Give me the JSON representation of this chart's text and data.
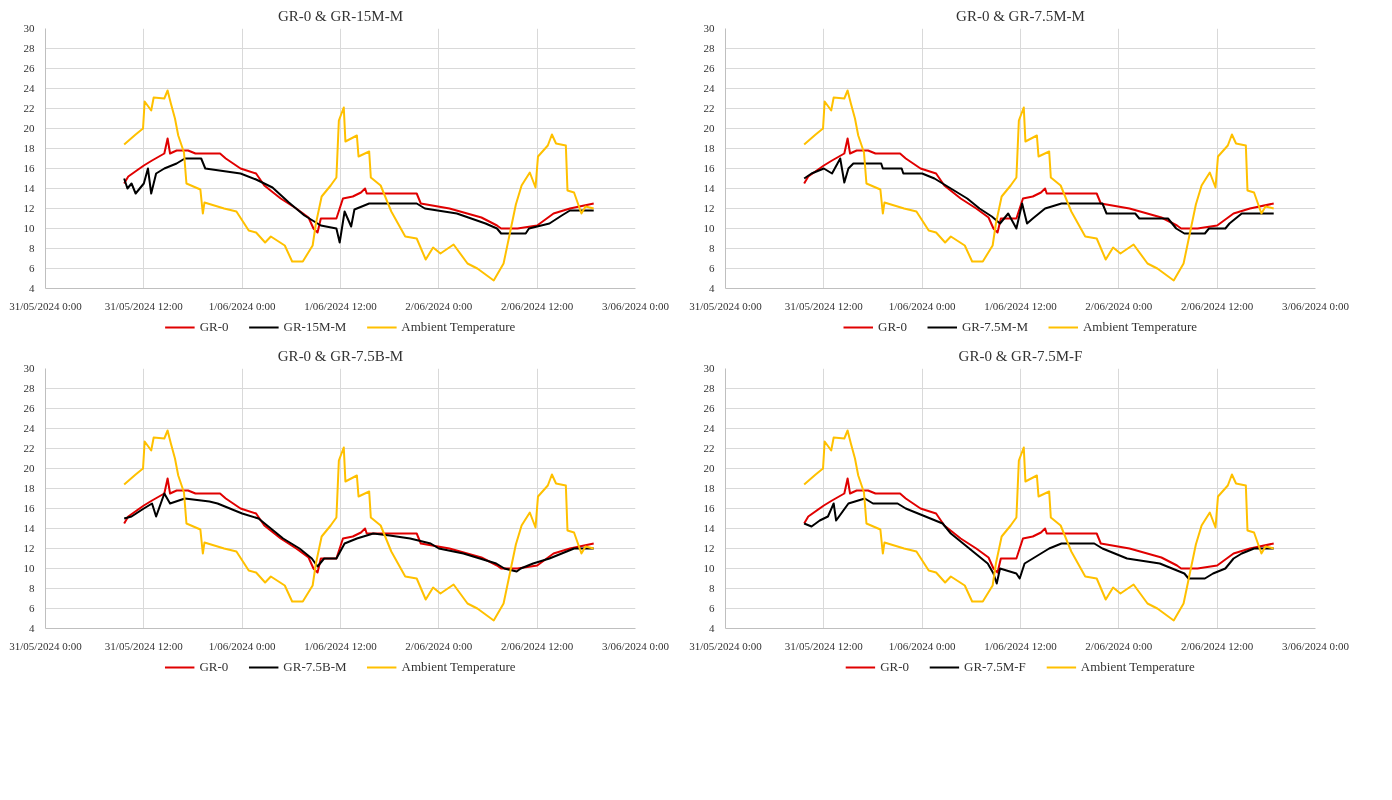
{
  "chart_data": [
    {
      "type": "line",
      "title": "GR-0 & GR-15M-M",
      "xlim": [
        "2024-05-31T00:00",
        "2024-06-03T00:00"
      ],
      "xticks": [
        {
          "value": "2024-05-31T00:00",
          "label": "31/05/2024 0:00"
        },
        {
          "value": "2024-05-31T12:00",
          "label": "31/05/2024 12:00"
        },
        {
          "value": "2024-06-01T00:00",
          "label": "1/06/2024 0:00"
        },
        {
          "value": "2024-06-01T12:00",
          "label": "1/06/2024 12:00"
        },
        {
          "value": "2024-06-02T00:00",
          "label": "2/06/2024 0:00"
        },
        {
          "value": "2024-06-02T12:00",
          "label": "2/06/2024 12:00"
        },
        {
          "value": "2024-06-03T00:00",
          "label": "3/06/2024 0:00"
        }
      ],
      "ylim": [
        4,
        30
      ],
      "yticks": [
        4,
        6,
        8,
        10,
        12,
        14,
        16,
        18,
        20,
        22,
        24,
        26,
        28,
        30
      ],
      "grid": true,
      "legend": "bottom",
      "series": [
        {
          "name": "GR-0",
          "color": "#e00000",
          "x": [
            "2024-05-31T09:36",
            "2024-05-31T10:06",
            "2024-05-31T12:00",
            "2024-05-31T13:00",
            "2024-05-31T14:30",
            "2024-05-31T14:54",
            "2024-05-31T15:12",
            "2024-05-31T16:00",
            "2024-05-31T17:24",
            "2024-05-31T18:18",
            "2024-05-31T21:18",
            "2024-05-31T22:00",
            "2024-05-31T23:48",
            "2024-06-01T01:42",
            "2024-06-01T02:42",
            "2024-06-01T04:42",
            "2024-06-01T06:36",
            "2024-06-01T08:06",
            "2024-06-01T08:42",
            "2024-06-01T09:12",
            "2024-06-01T09:36",
            "2024-06-01T11:30",
            "2024-06-01T12:18",
            "2024-06-01T13:30",
            "2024-06-01T14:30",
            "2024-06-01T15:00",
            "2024-06-01T15:12",
            "2024-06-01T21:18",
            "2024-06-01T21:48",
            "2024-06-02T01:18",
            "2024-06-02T05:12",
            "2024-06-02T07:06",
            "2024-06-02T07:36",
            "2024-06-02T09:36",
            "2024-06-02T12:00",
            "2024-06-02T14:00",
            "2024-06-02T16:00",
            "2024-06-02T18:54"
          ],
          "values": [
            14.5,
            15.2,
            16.3,
            16.8,
            17.5,
            19.0,
            17.5,
            17.8,
            17.8,
            17.5,
            17.5,
            17.0,
            16.0,
            15.5,
            14.3,
            13.0,
            12.0,
            11.1,
            10.0,
            9.6,
            11.0,
            11.0,
            13.0,
            13.2,
            13.6,
            14.0,
            13.5,
            13.5,
            12.5,
            12.0,
            11.1,
            10.3,
            10.0,
            10.0,
            10.3,
            11.5,
            12.0,
            12.5
          ]
        },
        {
          "name": "GR-15M-M",
          "color": "#000000",
          "x": [
            "2024-05-31T09:36",
            "2024-05-31T10:00",
            "2024-05-31T10:30",
            "2024-05-31T11:00",
            "2024-05-31T12:00",
            "2024-05-31T12:30",
            "2024-05-31T12:54",
            "2024-05-31T13:30",
            "2024-05-31T14:30",
            "2024-05-31T16:00",
            "2024-05-31T17:00",
            "2024-05-31T19:00",
            "2024-05-31T19:30",
            "2024-05-31T23:48",
            "2024-06-01T01:42",
            "2024-06-01T03:42",
            "2024-06-01T05:42",
            "2024-06-01T07:36",
            "2024-06-01T09:36",
            "2024-06-01T11:30",
            "2024-06-01T11:54",
            "2024-06-01T12:30",
            "2024-06-01T13:18",
            "2024-06-01T13:42",
            "2024-06-01T15:30",
            "2024-06-01T21:18",
            "2024-06-01T22:18",
            "2024-06-02T02:12",
            "2024-06-02T05:42",
            "2024-06-02T07:06",
            "2024-06-02T07:36",
            "2024-06-02T10:36",
            "2024-06-02T11:00",
            "2024-06-02T13:30",
            "2024-06-02T15:00",
            "2024-06-02T16:00",
            "2024-06-02T18:54"
          ],
          "values": [
            15.0,
            14.0,
            14.5,
            13.5,
            14.5,
            16.0,
            13.5,
            15.5,
            16.0,
            16.5,
            17.0,
            17.0,
            16.0,
            15.5,
            14.9,
            14.1,
            12.6,
            11.3,
            10.3,
            10.0,
            8.6,
            11.7,
            10.2,
            11.9,
            12.5,
            12.5,
            12.0,
            11.5,
            10.5,
            10.0,
            9.5,
            9.5,
            10.0,
            10.5,
            11.3,
            11.8,
            11.8
          ]
        },
        {
          "name": "Ambient Temperature",
          "color": "#ffc000",
          "x": [
            "2024-05-31T09:36",
            "2024-05-31T11:00",
            "2024-05-31T11:54",
            "2024-05-31T12:06",
            "2024-05-31T12:54",
            "2024-05-31T13:12",
            "2024-05-31T14:30",
            "2024-05-31T14:54",
            "2024-05-31T15:18",
            "2024-05-31T15:48",
            "2024-05-31T16:12",
            "2024-05-31T16:54",
            "2024-05-31T17:12",
            "2024-05-31T18:54",
            "2024-05-31T19:12",
            "2024-05-31T19:24",
            "2024-05-31T21:48",
            "2024-05-31T23:18",
            "2024-06-01T00:48",
            "2024-06-01T01:42",
            "2024-06-01T02:48",
            "2024-06-01T03:30",
            "2024-06-01T05:12",
            "2024-06-01T06:06",
            "2024-06-01T07:24",
            "2024-06-01T08:36",
            "2024-06-01T09:00",
            "2024-06-01T09:42",
            "2024-06-01T10:48",
            "2024-06-01T11:30",
            "2024-06-01T11:48",
            "2024-06-01T12:24",
            "2024-06-01T12:36",
            "2024-06-01T14:00",
            "2024-06-01T14:12",
            "2024-06-01T15:30",
            "2024-06-01T15:42",
            "2024-06-01T16:54",
            "2024-06-01T18:12",
            "2024-06-01T19:54",
            "2024-06-01T21:18",
            "2024-06-01T22:24",
            "2024-06-01T23:18",
            "2024-06-02T00:12",
            "2024-06-02T01:48",
            "2024-06-02T03:30",
            "2024-06-02T04:42",
            "2024-06-02T06:42",
            "2024-06-02T07:54",
            "2024-06-02T09:24",
            "2024-06-02T10:06",
            "2024-06-02T11:06",
            "2024-06-02T11:48",
            "2024-06-02T12:06",
            "2024-06-02T13:18",
            "2024-06-02T13:48",
            "2024-06-02T14:18",
            "2024-06-02T15:30",
            "2024-06-02T15:42",
            "2024-06-02T16:30",
            "2024-06-02T17:24",
            "2024-06-02T17:54",
            "2024-06-02T18:54"
          ],
          "values": [
            18.4,
            19.4,
            20.0,
            22.7,
            21.8,
            23.1,
            23.0,
            23.8,
            22.5,
            21.0,
            19.3,
            17.6,
            14.5,
            13.9,
            11.5,
            12.6,
            12.0,
            11.7,
            9.8,
            9.6,
            8.6,
            9.2,
            8.3,
            6.7,
            6.7,
            8.3,
            10.5,
            13.2,
            14.3,
            15.1,
            20.8,
            22.1,
            18.7,
            19.3,
            17.2,
            17.7,
            15.1,
            14.3,
            11.7,
            9.2,
            9.0,
            6.9,
            8.1,
            7.5,
            8.4,
            6.5,
            6.0,
            4.8,
            6.5,
            12.4,
            14.3,
            15.6,
            14.1,
            17.2,
            18.3,
            19.4,
            18.5,
            18.3,
            13.8,
            13.6,
            11.5,
            12.2,
            12.0
          ]
        }
      ]
    },
    {
      "type": "line",
      "title": "GR-0 & GR-7.5M-M",
      "xlim": [
        "2024-05-31T00:00",
        "2024-06-03T00:00"
      ],
      "xticks": [
        {
          "value": "2024-05-31T00:00",
          "label": "31/05/2024 0:00"
        },
        {
          "value": "2024-05-31T12:00",
          "label": "31/05/2024 12:00"
        },
        {
          "value": "2024-06-01T00:00",
          "label": "1/06/2024 0:00"
        },
        {
          "value": "2024-06-01T12:00",
          "label": "1/06/2024 12:00"
        },
        {
          "value": "2024-06-02T00:00",
          "label": "2/06/2024 0:00"
        },
        {
          "value": "2024-06-02T12:00",
          "label": "2/06/2024 12:00"
        },
        {
          "value": "2024-06-03T00:00",
          "label": "3/06/2024 0:00"
        }
      ],
      "ylim": [
        4,
        30
      ],
      "yticks": [
        4,
        6,
        8,
        10,
        12,
        14,
        16,
        18,
        20,
        22,
        24,
        26,
        28,
        30
      ],
      "grid": true,
      "legend": "bottom",
      "series": [
        {
          "name": "GR-0",
          "color": "#e00000",
          "x": [
            "2024-05-31T09:36",
            "2024-05-31T10:06",
            "2024-05-31T12:00",
            "2024-05-31T13:00",
            "2024-05-31T14:30",
            "2024-05-31T14:54",
            "2024-05-31T15:12",
            "2024-05-31T16:00",
            "2024-05-31T17:24",
            "2024-05-31T18:18",
            "2024-05-31T21:18",
            "2024-05-31T22:00",
            "2024-05-31T23:48",
            "2024-06-01T01:42",
            "2024-06-01T02:42",
            "2024-06-01T04:42",
            "2024-06-01T06:36",
            "2024-06-01T08:06",
            "2024-06-01T08:42",
            "2024-06-01T09:12",
            "2024-06-01T09:36",
            "2024-06-01T11:30",
            "2024-06-01T12:18",
            "2024-06-01T13:30",
            "2024-06-01T14:30",
            "2024-06-01T15:00",
            "2024-06-01T15:12",
            "2024-06-01T21:18",
            "2024-06-01T21:48",
            "2024-06-02T01:18",
            "2024-06-02T05:12",
            "2024-06-02T07:06",
            "2024-06-02T07:36",
            "2024-06-02T09:36",
            "2024-06-02T12:00",
            "2024-06-02T14:00",
            "2024-06-02T16:00",
            "2024-06-02T18:54"
          ],
          "values": [
            14.5,
            15.2,
            16.3,
            16.8,
            17.5,
            19.0,
            17.5,
            17.8,
            17.8,
            17.5,
            17.5,
            17.0,
            16.0,
            15.5,
            14.3,
            13.0,
            12.0,
            11.1,
            10.0,
            9.6,
            11.0,
            11.0,
            13.0,
            13.2,
            13.6,
            14.0,
            13.5,
            13.5,
            12.5,
            12.0,
            11.1,
            10.3,
            10.0,
            10.0,
            10.3,
            11.5,
            12.0,
            12.5
          ]
        },
        {
          "name": "GR-7.5M-M",
          "color": "#000000",
          "x": [
            "2024-05-31T09:36",
            "2024-05-31T10:30",
            "2024-05-31T12:00",
            "2024-05-31T13:00",
            "2024-05-31T14:00",
            "2024-05-31T14:30",
            "2024-05-31T15:00",
            "2024-05-31T15:36",
            "2024-05-31T19:00",
            "2024-05-31T19:12",
            "2024-05-31T21:30",
            "2024-05-31T21:42",
            "2024-06-01T00:00",
            "2024-06-01T01:30",
            "2024-06-01T02:30",
            "2024-06-01T03:30",
            "2024-06-01T05:30",
            "2024-06-01T07:00",
            "2024-06-01T08:30",
            "2024-06-01T09:30",
            "2024-06-01T10:30",
            "2024-06-01T11:30",
            "2024-06-01T12:12",
            "2024-06-01T12:48",
            "2024-06-01T13:30",
            "2024-06-01T15:00",
            "2024-06-01T17:00",
            "2024-06-01T22:00",
            "2024-06-01T22:30",
            "2024-06-02T02:00",
            "2024-06-02T02:30",
            "2024-06-02T06:00",
            "2024-06-02T06:30",
            "2024-06-02T07:00",
            "2024-06-02T08:00",
            "2024-06-02T10:30",
            "2024-06-02T11:00",
            "2024-06-02T13:00",
            "2024-06-02T13:30",
            "2024-06-02T15:00",
            "2024-06-02T18:54"
          ],
          "values": [
            15.0,
            15.5,
            16.0,
            15.5,
            17.0,
            14.6,
            16.0,
            16.5,
            16.5,
            16.0,
            16.0,
            15.5,
            15.5,
            15.0,
            14.5,
            14.0,
            13.0,
            12.0,
            11.2,
            10.5,
            11.5,
            10.0,
            12.5,
            10.5,
            11.0,
            12.0,
            12.5,
            12.5,
            11.5,
            11.5,
            11.0,
            11.0,
            10.5,
            10.0,
            9.5,
            9.5,
            10.0,
            10.0,
            10.5,
            11.5,
            11.5
          ]
        },
        {
          "name": "Ambient Temperature",
          "color": "#ffc000",
          "x": [
            "2024-05-31T09:36",
            "2024-05-31T11:00",
            "2024-05-31T11:54",
            "2024-05-31T12:06",
            "2024-05-31T12:54",
            "2024-05-31T13:12",
            "2024-05-31T14:30",
            "2024-05-31T14:54",
            "2024-05-31T15:18",
            "2024-05-31T15:48",
            "2024-05-31T16:12",
            "2024-05-31T16:54",
            "2024-05-31T17:12",
            "2024-05-31T18:54",
            "2024-05-31T19:12",
            "2024-05-31T19:24",
            "2024-05-31T21:48",
            "2024-05-31T23:18",
            "2024-06-01T00:48",
            "2024-06-01T01:42",
            "2024-06-01T02:48",
            "2024-06-01T03:30",
            "2024-06-01T05:12",
            "2024-06-01T06:06",
            "2024-06-01T07:24",
            "2024-06-01T08:36",
            "2024-06-01T09:00",
            "2024-06-01T09:42",
            "2024-06-01T10:48",
            "2024-06-01T11:30",
            "2024-06-01T11:48",
            "2024-06-01T12:24",
            "2024-06-01T12:36",
            "2024-06-01T14:00",
            "2024-06-01T14:12",
            "2024-06-01T15:30",
            "2024-06-01T15:42",
            "2024-06-01T16:54",
            "2024-06-01T18:12",
            "2024-06-01T19:54",
            "2024-06-01T21:18",
            "2024-06-01T22:24",
            "2024-06-01T23:18",
            "2024-06-02T00:12",
            "2024-06-02T01:48",
            "2024-06-02T03:30",
            "2024-06-02T04:42",
            "2024-06-02T06:42",
            "2024-06-02T07:54",
            "2024-06-02T09:24",
            "2024-06-02T10:06",
            "2024-06-02T11:06",
            "2024-06-02T11:48",
            "2024-06-02T12:06",
            "2024-06-02T13:18",
            "2024-06-02T13:48",
            "2024-06-02T14:18",
            "2024-06-02T15:30",
            "2024-06-02T15:42",
            "2024-06-02T16:30",
            "2024-06-02T17:24",
            "2024-06-02T17:54",
            "2024-06-02T18:54"
          ],
          "values": [
            18.4,
            19.4,
            20.0,
            22.7,
            21.8,
            23.1,
            23.0,
            23.8,
            22.5,
            21.0,
            19.3,
            17.6,
            14.5,
            13.9,
            11.5,
            12.6,
            12.0,
            11.7,
            9.8,
            9.6,
            8.6,
            9.2,
            8.3,
            6.7,
            6.7,
            8.3,
            10.5,
            13.2,
            14.3,
            15.1,
            20.8,
            22.1,
            18.7,
            19.3,
            17.2,
            17.7,
            15.1,
            14.3,
            11.7,
            9.2,
            9.0,
            6.9,
            8.1,
            7.5,
            8.4,
            6.5,
            6.0,
            4.8,
            6.5,
            12.4,
            14.3,
            15.6,
            14.1,
            17.2,
            18.3,
            19.4,
            18.5,
            18.3,
            13.8,
            13.6,
            11.5,
            12.2,
            12.0
          ]
        }
      ]
    },
    {
      "type": "line",
      "title": "GR-0 & GR-7.5B-M",
      "xlim": [
        "2024-05-31T00:00",
        "2024-06-03T00:00"
      ],
      "xticks": [
        {
          "value": "2024-05-31T00:00",
          "label": "31/05/2024 0:00"
        },
        {
          "value": "2024-05-31T12:00",
          "label": "31/05/2024 12:00"
        },
        {
          "value": "2024-06-01T00:00",
          "label": "1/06/2024 0:00"
        },
        {
          "value": "2024-06-01T12:00",
          "label": "1/06/2024 12:00"
        },
        {
          "value": "2024-06-02T00:00",
          "label": "2/06/2024 0:00"
        },
        {
          "value": "2024-06-02T12:00",
          "label": "2/06/2024 12:00"
        },
        {
          "value": "2024-06-03T00:00",
          "label": "3/06/2024 0:00"
        }
      ],
      "ylim": [
        4,
        30
      ],
      "yticks": [
        4,
        6,
        8,
        10,
        12,
        14,
        16,
        18,
        20,
        22,
        24,
        26,
        28,
        30
      ],
      "grid": true,
      "legend": "bottom",
      "series": [
        {
          "name": "GR-0",
          "color": "#e00000",
          "x": [
            "2024-05-31T09:36",
            "2024-05-31T10:06",
            "2024-05-31T12:00",
            "2024-05-31T13:00",
            "2024-05-31T14:30",
            "2024-05-31T14:54",
            "2024-05-31T15:12",
            "2024-05-31T16:00",
            "2024-05-31T17:24",
            "2024-05-31T18:18",
            "2024-05-31T21:18",
            "2024-05-31T22:00",
            "2024-05-31T23:48",
            "2024-06-01T01:42",
            "2024-06-01T02:42",
            "2024-06-01T04:42",
            "2024-06-01T06:36",
            "2024-06-01T08:06",
            "2024-06-01T08:42",
            "2024-06-01T09:12",
            "2024-06-01T09:36",
            "2024-06-01T11:30",
            "2024-06-01T12:18",
            "2024-06-01T13:30",
            "2024-06-01T14:30",
            "2024-06-01T15:00",
            "2024-06-01T15:12",
            "2024-06-01T21:18",
            "2024-06-01T21:48",
            "2024-06-02T01:18",
            "2024-06-02T05:12",
            "2024-06-02T07:06",
            "2024-06-02T07:36",
            "2024-06-02T09:36",
            "2024-06-02T12:00",
            "2024-06-02T14:00",
            "2024-06-02T16:00",
            "2024-06-02T18:54"
          ],
          "values": [
            14.5,
            15.2,
            16.3,
            16.8,
            17.5,
            19.0,
            17.5,
            17.8,
            17.8,
            17.5,
            17.5,
            17.0,
            16.0,
            15.5,
            14.3,
            13.0,
            12.0,
            11.1,
            10.0,
            9.6,
            11.0,
            11.0,
            13.0,
            13.2,
            13.6,
            14.0,
            13.5,
            13.5,
            12.5,
            12.0,
            11.1,
            10.3,
            10.0,
            10.0,
            10.3,
            11.5,
            12.0,
            12.5
          ]
        },
        {
          "name": "GR-7.5B-M",
          "color": "#000000",
          "x": [
            "2024-05-31T09:36",
            "2024-05-31T10:30",
            "2024-05-31T12:00",
            "2024-05-31T13:00",
            "2024-05-31T13:30",
            "2024-05-31T14:30",
            "2024-05-31T15:12",
            "2024-05-31T17:00",
            "2024-05-31T20:00",
            "2024-05-31T21:00",
            "2024-05-31T22:30",
            "2024-06-01T00:00",
            "2024-06-01T02:00",
            "2024-06-01T03:30",
            "2024-06-01T05:00",
            "2024-06-01T07:00",
            "2024-06-01T08:30",
            "2024-06-01T09:12",
            "2024-06-01T10:00",
            "2024-06-01T11:30",
            "2024-06-01T12:30",
            "2024-06-01T14:00",
            "2024-06-01T16:00",
            "2024-06-01T18:00",
            "2024-06-01T20:30",
            "2024-06-01T23:00",
            "2024-06-02T00:00",
            "2024-06-02T03:00",
            "2024-06-02T05:00",
            "2024-06-02T07:00",
            "2024-06-02T08:00",
            "2024-06-02T09:30",
            "2024-06-02T10:00",
            "2024-06-02T11:30",
            "2024-06-02T13:30",
            "2024-06-02T15:00",
            "2024-06-02T16:30",
            "2024-06-02T18:54"
          ],
          "values": [
            15.0,
            15.2,
            16.0,
            16.5,
            15.2,
            17.5,
            16.5,
            17.0,
            16.7,
            16.5,
            16.0,
            15.5,
            15.0,
            14.0,
            13.0,
            12.0,
            11.0,
            10.2,
            11.0,
            11.0,
            12.5,
            13.0,
            13.5,
            13.3,
            13.0,
            12.5,
            12.0,
            11.5,
            11.0,
            10.5,
            10.0,
            9.7,
            10.0,
            10.5,
            11.0,
            11.5,
            12.0,
            12.0
          ]
        },
        {
          "name": "Ambient Temperature",
          "color": "#ffc000",
          "x": [
            "2024-05-31T09:36",
            "2024-05-31T11:00",
            "2024-05-31T11:54",
            "2024-05-31T12:06",
            "2024-05-31T12:54",
            "2024-05-31T13:12",
            "2024-05-31T14:30",
            "2024-05-31T14:54",
            "2024-05-31T15:18",
            "2024-05-31T15:48",
            "2024-05-31T16:12",
            "2024-05-31T16:54",
            "2024-05-31T17:12",
            "2024-05-31T18:54",
            "2024-05-31T19:12",
            "2024-05-31T19:24",
            "2024-05-31T21:48",
            "2024-05-31T23:18",
            "2024-06-01T00:48",
            "2024-06-01T01:42",
            "2024-06-01T02:48",
            "2024-06-01T03:30",
            "2024-06-01T05:12",
            "2024-06-01T06:06",
            "2024-06-01T07:24",
            "2024-06-01T08:36",
            "2024-06-01T09:00",
            "2024-06-01T09:42",
            "2024-06-01T10:48",
            "2024-06-01T11:30",
            "2024-06-01T11:48",
            "2024-06-01T12:24",
            "2024-06-01T12:36",
            "2024-06-01T14:00",
            "2024-06-01T14:12",
            "2024-06-01T15:30",
            "2024-06-01T15:42",
            "2024-06-01T16:54",
            "2024-06-01T18:12",
            "2024-06-01T19:54",
            "2024-06-01T21:18",
            "2024-06-01T22:24",
            "2024-06-01T23:18",
            "2024-06-02T00:12",
            "2024-06-02T01:48",
            "2024-06-02T03:30",
            "2024-06-02T04:42",
            "2024-06-02T06:42",
            "2024-06-02T07:54",
            "2024-06-02T09:24",
            "2024-06-02T10:06",
            "2024-06-02T11:06",
            "2024-06-02T11:48",
            "2024-06-02T12:06",
            "2024-06-02T13:18",
            "2024-06-02T13:48",
            "2024-06-02T14:18",
            "2024-06-02T15:30",
            "2024-06-02T15:42",
            "2024-06-02T16:30",
            "2024-06-02T17:24",
            "2024-06-02T17:54",
            "2024-06-02T18:54"
          ],
          "values": [
            18.4,
            19.4,
            20.0,
            22.7,
            21.8,
            23.1,
            23.0,
            23.8,
            22.5,
            21.0,
            19.3,
            17.6,
            14.5,
            13.9,
            11.5,
            12.6,
            12.0,
            11.7,
            9.8,
            9.6,
            8.6,
            9.2,
            8.3,
            6.7,
            6.7,
            8.3,
            10.5,
            13.2,
            14.3,
            15.1,
            20.8,
            22.1,
            18.7,
            19.3,
            17.2,
            17.7,
            15.1,
            14.3,
            11.7,
            9.2,
            9.0,
            6.9,
            8.1,
            7.5,
            8.4,
            6.5,
            6.0,
            4.8,
            6.5,
            12.4,
            14.3,
            15.6,
            14.1,
            17.2,
            18.3,
            19.4,
            18.5,
            18.3,
            13.8,
            13.6,
            11.5,
            12.2,
            12.0
          ]
        }
      ]
    },
    {
      "type": "line",
      "title": "GR-0 & GR-7.5M-F",
      "xlim": [
        "2024-05-31T00:00",
        "2024-06-03T00:00"
      ],
      "xticks": [
        {
          "value": "2024-05-31T00:00",
          "label": "31/05/2024 0:00"
        },
        {
          "value": "2024-05-31T12:00",
          "label": "31/05/2024 12:00"
        },
        {
          "value": "2024-06-01T00:00",
          "label": "1/06/2024 0:00"
        },
        {
          "value": "2024-06-01T12:00",
          "label": "1/06/2024 12:00"
        },
        {
          "value": "2024-06-02T00:00",
          "label": "2/06/2024 0:00"
        },
        {
          "value": "2024-06-02T12:00",
          "label": "2/06/2024 12:00"
        },
        {
          "value": "2024-06-03T00:00",
          "label": "3/06/2024 0:00"
        }
      ],
      "ylim": [
        4,
        30
      ],
      "yticks": [
        4,
        6,
        8,
        10,
        12,
        14,
        16,
        18,
        20,
        22,
        24,
        26,
        28,
        30
      ],
      "grid": true,
      "legend": "bottom",
      "series": [
        {
          "name": "GR-0",
          "color": "#e00000",
          "x": [
            "2024-05-31T09:36",
            "2024-05-31T10:06",
            "2024-05-31T12:00",
            "2024-05-31T13:00",
            "2024-05-31T14:30",
            "2024-05-31T14:54",
            "2024-05-31T15:12",
            "2024-05-31T16:00",
            "2024-05-31T17:24",
            "2024-05-31T18:18",
            "2024-05-31T21:18",
            "2024-05-31T22:00",
            "2024-05-31T23:48",
            "2024-06-01T01:42",
            "2024-06-01T02:42",
            "2024-06-01T04:42",
            "2024-06-01T06:36",
            "2024-06-01T08:06",
            "2024-06-01T08:42",
            "2024-06-01T09:12",
            "2024-06-01T09:36",
            "2024-06-01T11:30",
            "2024-06-01T12:18",
            "2024-06-01T13:30",
            "2024-06-01T14:30",
            "2024-06-01T15:00",
            "2024-06-01T15:12",
            "2024-06-01T21:18",
            "2024-06-01T21:48",
            "2024-06-02T01:18",
            "2024-06-02T05:12",
            "2024-06-02T07:06",
            "2024-06-02T07:36",
            "2024-06-02T09:36",
            "2024-06-02T12:00",
            "2024-06-02T14:00",
            "2024-06-02T16:00",
            "2024-06-02T18:54"
          ],
          "values": [
            14.5,
            15.2,
            16.3,
            16.8,
            17.5,
            19.0,
            17.5,
            17.8,
            17.8,
            17.5,
            17.5,
            17.0,
            16.0,
            15.5,
            14.3,
            13.0,
            12.0,
            11.1,
            10.0,
            9.6,
            11.0,
            11.0,
            13.0,
            13.2,
            13.6,
            14.0,
            13.5,
            13.5,
            12.5,
            12.0,
            11.1,
            10.3,
            10.0,
            10.0,
            10.3,
            11.5,
            12.0,
            12.5
          ]
        },
        {
          "name": "GR-7.5M-F",
          "color": "#000000",
          "x": [
            "2024-05-31T09:36",
            "2024-05-31T10:30",
            "2024-05-31T11:30",
            "2024-05-31T12:30",
            "2024-05-31T13:12",
            "2024-05-31T13:30",
            "2024-05-31T15:00",
            "2024-05-31T17:00",
            "2024-05-31T18:00",
            "2024-05-31T21:00",
            "2024-05-31T22:00",
            "2024-05-31T23:30",
            "2024-06-01T01:00",
            "2024-06-01T02:30",
            "2024-06-01T03:30",
            "2024-06-01T05:00",
            "2024-06-01T06:30",
            "2024-06-01T08:00",
            "2024-06-01T08:42",
            "2024-06-01T09:06",
            "2024-06-01T09:30",
            "2024-06-01T11:30",
            "2024-06-01T11:54",
            "2024-06-01T12:30",
            "2024-06-01T13:30",
            "2024-06-01T14:30",
            "2024-06-01T15:30",
            "2024-06-01T17:00",
            "2024-06-01T21:00",
            "2024-06-01T22:00",
            "2024-06-01T23:30",
            "2024-06-02T01:00",
            "2024-06-02T05:00",
            "2024-06-02T06:30",
            "2024-06-02T08:00",
            "2024-06-02T08:30",
            "2024-06-02T10:30",
            "2024-06-02T11:30",
            "2024-06-02T13:00",
            "2024-06-02T14:00",
            "2024-06-02T15:00",
            "2024-06-02T16:30",
            "2024-06-02T18:54"
          ],
          "values": [
            14.5,
            14.2,
            14.8,
            15.2,
            16.5,
            14.8,
            16.5,
            17.0,
            16.5,
            16.5,
            16.0,
            15.5,
            15.0,
            14.5,
            13.5,
            12.5,
            11.5,
            10.5,
            9.5,
            8.5,
            10.0,
            9.5,
            9.0,
            10.5,
            11.0,
            11.5,
            12.0,
            12.5,
            12.5,
            12.0,
            11.5,
            11.0,
            10.5,
            10.0,
            9.5,
            9.0,
            9.0,
            9.5,
            10.0,
            11.0,
            11.5,
            12.0,
            12.0
          ]
        },
        {
          "name": "Ambient Temperature",
          "color": "#ffc000",
          "x": [
            "2024-05-31T09:36",
            "2024-05-31T11:00",
            "2024-05-31T11:54",
            "2024-05-31T12:06",
            "2024-05-31T12:54",
            "2024-05-31T13:12",
            "2024-05-31T14:30",
            "2024-05-31T14:54",
            "2024-05-31T15:18",
            "2024-05-31T15:48",
            "2024-05-31T16:12",
            "2024-05-31T16:54",
            "2024-05-31T17:12",
            "2024-05-31T18:54",
            "2024-05-31T19:12",
            "2024-05-31T19:24",
            "2024-05-31T21:48",
            "2024-05-31T23:18",
            "2024-06-01T00:48",
            "2024-06-01T01:42",
            "2024-06-01T02:48",
            "2024-06-01T03:30",
            "2024-06-01T05:12",
            "2024-06-01T06:06",
            "2024-06-01T07:24",
            "2024-06-01T08:36",
            "2024-06-01T09:00",
            "2024-06-01T09:42",
            "2024-06-01T10:48",
            "2024-06-01T11:30",
            "2024-06-01T11:48",
            "2024-06-01T12:24",
            "2024-06-01T12:36",
            "2024-06-01T14:00",
            "2024-06-01T14:12",
            "2024-06-01T15:30",
            "2024-06-01T15:42",
            "2024-06-01T16:54",
            "2024-06-01T18:12",
            "2024-06-01T19:54",
            "2024-06-01T21:18",
            "2024-06-01T22:24",
            "2024-06-01T23:18",
            "2024-06-02T00:12",
            "2024-06-02T01:48",
            "2024-06-02T03:30",
            "2024-06-02T04:42",
            "2024-06-02T06:42",
            "2024-06-02T07:54",
            "2024-06-02T09:24",
            "2024-06-02T10:06",
            "2024-06-02T11:06",
            "2024-06-02T11:48",
            "2024-06-02T12:06",
            "2024-06-02T13:18",
            "2024-06-02T13:48",
            "2024-06-02T14:18",
            "2024-06-02T15:30",
            "2024-06-02T15:42",
            "2024-06-02T16:30",
            "2024-06-02T17:24",
            "2024-06-02T17:54",
            "2024-06-02T18:54"
          ],
          "values": [
            18.4,
            19.4,
            20.0,
            22.7,
            21.8,
            23.1,
            23.0,
            23.8,
            22.5,
            21.0,
            19.3,
            17.6,
            14.5,
            13.9,
            11.5,
            12.6,
            12.0,
            11.7,
            9.8,
            9.6,
            8.6,
            9.2,
            8.3,
            6.7,
            6.7,
            8.3,
            10.5,
            13.2,
            14.3,
            15.1,
            20.8,
            22.1,
            18.7,
            19.3,
            17.2,
            17.7,
            15.1,
            14.3,
            11.7,
            9.2,
            9.0,
            6.9,
            8.1,
            7.5,
            8.4,
            6.5,
            6.0,
            4.8,
            6.5,
            12.4,
            14.3,
            15.6,
            14.1,
            17.2,
            18.3,
            19.4,
            18.5,
            18.3,
            13.8,
            13.6,
            11.5,
            12.2,
            12.0
          ]
        }
      ]
    }
  ]
}
